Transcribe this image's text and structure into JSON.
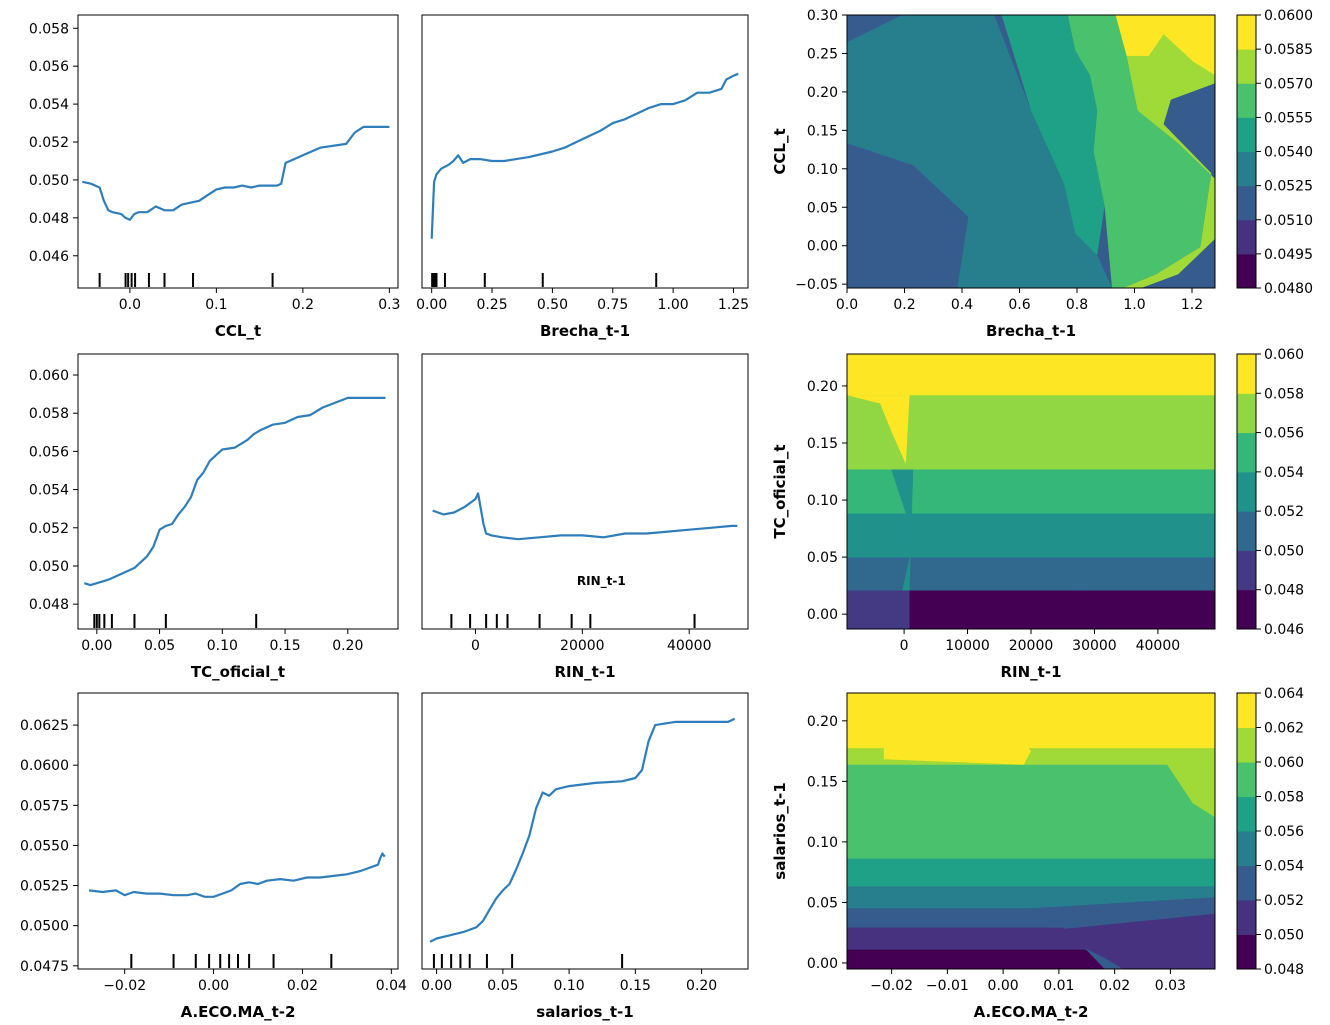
{
  "chart_data": [
    {
      "type": "line",
      "xlabel": "CCL_t",
      "ylabel": "",
      "xlim": [
        -0.06,
        0.31
      ],
      "ylim": [
        0.0443,
        0.0587
      ],
      "xticks": [
        {
          "v": 0.0,
          "label": "0.0"
        },
        {
          "v": 0.1,
          "label": "0.1"
        },
        {
          "v": 0.2,
          "label": "0.2"
        },
        {
          "v": 0.3,
          "label": "0.3"
        }
      ],
      "yticks": [
        {
          "v": 0.046,
          "label": "0.046"
        },
        {
          "v": 0.048,
          "label": "0.048"
        },
        {
          "v": 0.05,
          "label": "0.050"
        },
        {
          "v": 0.052,
          "label": "0.052"
        },
        {
          "v": 0.054,
          "label": "0.054"
        },
        {
          "v": 0.056,
          "label": "0.056"
        },
        {
          "v": 0.058,
          "label": "0.058"
        }
      ],
      "x": [
        -0.055,
        -0.045,
        -0.04,
        -0.035,
        -0.03,
        -0.025,
        -0.02,
        -0.01,
        -0.005,
        0.0,
        0.005,
        0.01,
        0.02,
        0.03,
        0.04,
        0.05,
        0.06,
        0.07,
        0.08,
        0.09,
        0.1,
        0.11,
        0.12,
        0.13,
        0.14,
        0.15,
        0.16,
        0.17,
        0.175,
        0.18,
        0.19,
        0.2,
        0.21,
        0.22,
        0.25,
        0.26,
        0.27,
        0.3
      ],
      "y": [
        0.0499,
        0.0498,
        0.0497,
        0.0496,
        0.0489,
        0.0484,
        0.0483,
        0.0482,
        0.048,
        0.0479,
        0.0482,
        0.0483,
        0.0483,
        0.0486,
        0.0484,
        0.0484,
        0.0487,
        0.0488,
        0.0489,
        0.0492,
        0.0495,
        0.0496,
        0.0496,
        0.0497,
        0.0496,
        0.0497,
        0.0497,
        0.0497,
        0.0498,
        0.0509,
        0.0511,
        0.0513,
        0.0515,
        0.0517,
        0.0519,
        0.0525,
        0.0528,
        0.0528
      ],
      "rug": [
        -0.035,
        -0.005,
        -0.002,
        0.002,
        0.006,
        0.022,
        0.04,
        0.073,
        0.165
      ]
    },
    {
      "type": "line",
      "xlabel": "Brecha_t-1",
      "ylabel": "",
      "xlim": [
        -0.04,
        1.31
      ],
      "ylim": [
        0.0443,
        0.0587
      ],
      "xticks": [
        {
          "v": 0.0,
          "label": "0.00"
        },
        {
          "v": 0.25,
          "label": "0.25"
        },
        {
          "v": 0.5,
          "label": "0.50"
        },
        {
          "v": 0.75,
          "label": "0.75"
        },
        {
          "v": 1.0,
          "label": "1.00"
        },
        {
          "v": 1.25,
          "label": "1.25"
        }
      ],
      "yticks": [],
      "x": [
        0.0,
        0.01,
        0.02,
        0.04,
        0.07,
        0.09,
        0.11,
        0.13,
        0.16,
        0.2,
        0.25,
        0.3,
        0.35,
        0.4,
        0.5,
        0.55,
        0.6,
        0.65,
        0.7,
        0.75,
        0.8,
        0.85,
        0.9,
        0.95,
        1.0,
        1.05,
        1.1,
        1.15,
        1.2,
        1.22,
        1.25,
        1.27
      ],
      "y": [
        0.0469,
        0.0499,
        0.0503,
        0.0506,
        0.0508,
        0.051,
        0.0513,
        0.0509,
        0.0511,
        0.0511,
        0.051,
        0.051,
        0.0511,
        0.0512,
        0.0515,
        0.0517,
        0.052,
        0.0523,
        0.0526,
        0.053,
        0.0532,
        0.0535,
        0.0538,
        0.054,
        0.054,
        0.0542,
        0.0546,
        0.0546,
        0.0548,
        0.0553,
        0.0555,
        0.0556
      ],
      "rug": [
        0.002,
        0.008,
        0.012,
        0.02,
        0.055,
        0.22,
        0.46,
        0.93
      ]
    },
    {
      "type": "heatmap",
      "xlabel": "Brecha_t-1",
      "ylabel": "CCL_t",
      "xlim": [
        0.0,
        1.28
      ],
      "ylim": [
        -0.055,
        0.3
      ],
      "xticks": [
        {
          "v": 0.0,
          "label": "0.0"
        },
        {
          "v": 0.2,
          "label": "0.2"
        },
        {
          "v": 0.4,
          "label": "0.4"
        },
        {
          "v": 0.6,
          "label": "0.6"
        },
        {
          "v": 0.8,
          "label": "0.8"
        },
        {
          "v": 1.0,
          "label": "1.0"
        },
        {
          "v": 1.2,
          "label": "1.2"
        }
      ],
      "yticks": [
        {
          "v": -0.05,
          "label": "−0.05"
        },
        {
          "v": 0.0,
          "label": "0.00"
        },
        {
          "v": 0.05,
          "label": "0.05"
        },
        {
          "v": 0.1,
          "label": "0.10"
        },
        {
          "v": 0.15,
          "label": "0.15"
        },
        {
          "v": 0.2,
          "label": "0.20"
        },
        {
          "v": 0.25,
          "label": "0.25"
        },
        {
          "v": 0.3,
          "label": "0.30"
        }
      ],
      "colorbar_ticks": [
        "0.0480",
        "0.0495",
        "0.0510",
        "0.0525",
        "0.0540",
        "0.0555",
        "0.0570",
        "0.0585",
        "0.0600"
      ],
      "colors": [
        "#440154",
        "#46327e",
        "#365c8d",
        "#277f8e",
        "#1fa187",
        "#4ac16d",
        "#a0da39",
        "#fde725"
      ]
    },
    {
      "type": "line",
      "xlabel": "TC_oficial_t",
      "ylabel": "",
      "xlim": [
        -0.015,
        0.24
      ],
      "ylim": [
        0.0467,
        0.0611
      ],
      "xticks": [
        {
          "v": 0.0,
          "label": "0.00"
        },
        {
          "v": 0.05,
          "label": "0.05"
        },
        {
          "v": 0.1,
          "label": "0.10"
        },
        {
          "v": 0.15,
          "label": "0.15"
        },
        {
          "v": 0.2,
          "label": "0.20"
        }
      ],
      "yticks": [
        {
          "v": 0.048,
          "label": "0.048"
        },
        {
          "v": 0.05,
          "label": "0.050"
        },
        {
          "v": 0.052,
          "label": "0.052"
        },
        {
          "v": 0.054,
          "label": "0.054"
        },
        {
          "v": 0.056,
          "label": "0.056"
        },
        {
          "v": 0.058,
          "label": "0.058"
        },
        {
          "v": 0.06,
          "label": "0.060"
        }
      ],
      "x": [
        -0.01,
        -0.005,
        0.0,
        0.005,
        0.01,
        0.02,
        0.03,
        0.04,
        0.045,
        0.05,
        0.055,
        0.06,
        0.065,
        0.07,
        0.075,
        0.08,
        0.085,
        0.09,
        0.095,
        0.1,
        0.11,
        0.12,
        0.125,
        0.13,
        0.14,
        0.15,
        0.16,
        0.17,
        0.18,
        0.2,
        0.23
      ],
      "y": [
        0.0491,
        0.049,
        0.0491,
        0.0492,
        0.0493,
        0.0496,
        0.0499,
        0.0505,
        0.051,
        0.0519,
        0.0521,
        0.0522,
        0.0527,
        0.0531,
        0.0536,
        0.0545,
        0.0549,
        0.0555,
        0.0558,
        0.0561,
        0.0562,
        0.0566,
        0.0569,
        0.0571,
        0.0574,
        0.0575,
        0.0578,
        0.0579,
        0.0583,
        0.0588,
        0.0588
      ],
      "rug": [
        -0.002,
        0.0,
        0.002,
        0.006,
        0.012,
        0.03,
        0.055,
        0.127
      ]
    },
    {
      "type": "line",
      "xlabel": "RIN_t-1",
      "ylabel": "",
      "annotation": "RIN_t-1",
      "xlim": [
        -10000,
        51000
      ],
      "ylim": [
        0.0467,
        0.0611
      ],
      "xticks": [
        {
          "v": 0,
          "label": "0"
        },
        {
          "v": 20000,
          "label": "20000"
        },
        {
          "v": 40000,
          "label": "40000"
        }
      ],
      "yticks": [],
      "x": [
        -8000,
        -6000,
        -4000,
        -2000,
        0,
        500,
        1000,
        1500,
        2000,
        3000,
        5000,
        8000,
        12000,
        16000,
        20000,
        24000,
        28000,
        32000,
        36000,
        40000,
        44000,
        48000,
        49000
      ],
      "y": [
        0.0529,
        0.0527,
        0.0528,
        0.0531,
        0.0535,
        0.0538,
        0.053,
        0.0522,
        0.0517,
        0.0516,
        0.0515,
        0.0514,
        0.0515,
        0.0516,
        0.0516,
        0.0515,
        0.0517,
        0.0517,
        0.0518,
        0.0519,
        0.052,
        0.0521,
        0.0521
      ],
      "rug": [
        -4500,
        -1000,
        2000,
        4000,
        6000,
        12000,
        18000,
        21500,
        41000
      ]
    },
    {
      "type": "heatmap",
      "xlabel": "RIN_t-1",
      "ylabel": "TC_oficial_t",
      "xlim": [
        -9000,
        49000
      ],
      "ylim": [
        -0.013,
        0.228
      ],
      "xticks": [
        {
          "v": 0,
          "label": "0"
        },
        {
          "v": 10000,
          "label": "10000"
        },
        {
          "v": 20000,
          "label": "20000"
        },
        {
          "v": 30000,
          "label": "30000"
        },
        {
          "v": 40000,
          "label": "40000"
        }
      ],
      "yticks": [
        {
          "v": 0.0,
          "label": "0.00"
        },
        {
          "v": 0.05,
          "label": "0.05"
        },
        {
          "v": 0.1,
          "label": "0.10"
        },
        {
          "v": 0.15,
          "label": "0.15"
        },
        {
          "v": 0.2,
          "label": "0.20"
        }
      ],
      "colorbar_ticks": [
        "0.046",
        "0.048",
        "0.050",
        "0.052",
        "0.054",
        "0.056",
        "0.058",
        "0.060"
      ],
      "colors": [
        "#440154",
        "#443a83",
        "#31688e",
        "#21918c",
        "#35b779",
        "#90d743",
        "#fde725"
      ]
    },
    {
      "type": "line",
      "xlabel": "A.ECO.MA_t-2",
      "ylabel": "",
      "xlim": [
        -0.0305,
        0.0415
      ],
      "ylim": [
        0.0473,
        0.0645
      ],
      "xticks": [
        {
          "v": -0.02,
          "label": "−0.02"
        },
        {
          "v": 0.0,
          "label": "0.00"
        },
        {
          "v": 0.02,
          "label": "0.02"
        },
        {
          "v": 0.04,
          "label": "0.04"
        }
      ],
      "yticks": [
        {
          "v": 0.0475,
          "label": "0.0475"
        },
        {
          "v": 0.05,
          "label": "0.0500"
        },
        {
          "v": 0.0525,
          "label": "0.0525"
        },
        {
          "v": 0.055,
          "label": "0.0550"
        },
        {
          "v": 0.0575,
          "label": "0.0575"
        },
        {
          "v": 0.06,
          "label": "0.0600"
        },
        {
          "v": 0.0625,
          "label": "0.0625"
        }
      ],
      "x": [
        -0.028,
        -0.025,
        -0.022,
        -0.02,
        -0.018,
        -0.015,
        -0.012,
        -0.009,
        -0.006,
        -0.004,
        -0.002,
        0.0,
        0.002,
        0.004,
        0.006,
        0.008,
        0.01,
        0.012,
        0.015,
        0.018,
        0.021,
        0.024,
        0.027,
        0.03,
        0.033,
        0.035,
        0.037,
        0.0375,
        0.038,
        0.0385
      ],
      "y": [
        0.0522,
        0.0521,
        0.0522,
        0.0519,
        0.0521,
        0.052,
        0.052,
        0.0519,
        0.0519,
        0.052,
        0.0518,
        0.0518,
        0.052,
        0.0522,
        0.0526,
        0.0527,
        0.0526,
        0.0528,
        0.0529,
        0.0528,
        0.053,
        0.053,
        0.0531,
        0.0532,
        0.0534,
        0.0536,
        0.0538,
        0.0542,
        0.0545,
        0.0543
      ],
      "rug": [
        -0.0185,
        -0.009,
        -0.004,
        -0.001,
        0.0015,
        0.0035,
        0.0055,
        0.008,
        0.0135,
        0.0265
      ]
    },
    {
      "type": "line",
      "xlabel": "salarios_t-1",
      "ylabel": "",
      "xlim": [
        -0.011,
        0.235
      ],
      "ylim": [
        0.0473,
        0.0645
      ],
      "xticks": [
        {
          "v": 0.0,
          "label": "0.00"
        },
        {
          "v": 0.05,
          "label": "0.05"
        },
        {
          "v": 0.1,
          "label": "0.10"
        },
        {
          "v": 0.15,
          "label": "0.15"
        },
        {
          "v": 0.2,
          "label": "0.20"
        }
      ],
      "yticks": [],
      "x": [
        -0.005,
        0.0,
        0.01,
        0.02,
        0.03,
        0.035,
        0.04,
        0.045,
        0.05,
        0.055,
        0.06,
        0.065,
        0.07,
        0.075,
        0.08,
        0.085,
        0.09,
        0.1,
        0.12,
        0.14,
        0.15,
        0.155,
        0.16,
        0.165,
        0.18,
        0.2,
        0.22,
        0.225
      ],
      "y": [
        0.049,
        0.0492,
        0.0494,
        0.0496,
        0.0499,
        0.0503,
        0.051,
        0.0517,
        0.0522,
        0.0526,
        0.0535,
        0.0545,
        0.0556,
        0.0573,
        0.0583,
        0.0581,
        0.0585,
        0.0587,
        0.0589,
        0.059,
        0.0592,
        0.0597,
        0.0615,
        0.0625,
        0.0627,
        0.0627,
        0.0627,
        0.0629
      ],
      "rug": [
        -0.002,
        0.004,
        0.011,
        0.018,
        0.025,
        0.038,
        0.057,
        0.14
      ]
    },
    {
      "type": "heatmap",
      "xlabel": "A.ECO.MA_t-2",
      "ylabel": "salarios_t-1",
      "xlim": [
        -0.028,
        0.038
      ],
      "ylim": [
        -0.005,
        0.223
      ],
      "xticks": [
        {
          "v": -0.02,
          "label": "−0.02"
        },
        {
          "v": -0.01,
          "label": "−0.01"
        },
        {
          "v": 0.0,
          "label": "0.00"
        },
        {
          "v": 0.01,
          "label": "0.01"
        },
        {
          "v": 0.02,
          "label": "0.02"
        },
        {
          "v": 0.03,
          "label": "0.03"
        }
      ],
      "yticks": [
        {
          "v": 0.0,
          "label": "0.00"
        },
        {
          "v": 0.05,
          "label": "0.05"
        },
        {
          "v": 0.1,
          "label": "0.10"
        },
        {
          "v": 0.15,
          "label": "0.15"
        },
        {
          "v": 0.2,
          "label": "0.20"
        }
      ],
      "colorbar_ticks": [
        "0.048",
        "0.050",
        "0.052",
        "0.054",
        "0.056",
        "0.058",
        "0.060",
        "0.062",
        "0.064"
      ],
      "colors": [
        "#440154",
        "#46327e",
        "#365c8d",
        "#277f8e",
        "#1fa187",
        "#4ac16d",
        "#a0da39",
        "#fde725"
      ]
    }
  ]
}
